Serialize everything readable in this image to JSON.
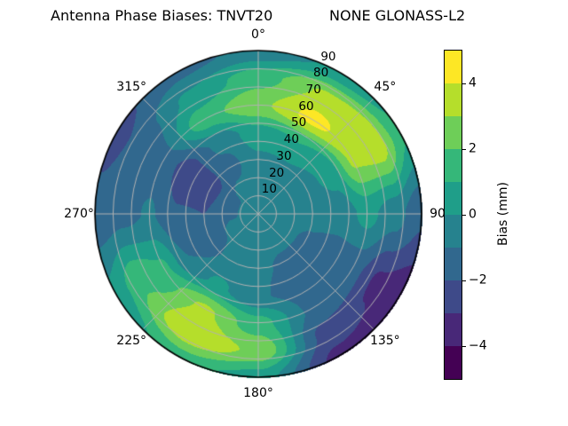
{
  "page": {
    "background": "#ffffff"
  },
  "title": {
    "left": "Antenna Phase Biases: TNVT20",
    "right": "NONE GLONASS-L2"
  },
  "chart_data": {
    "type": "polar_contour",
    "title": "Antenna Phase Biases: TNVT20        NONE GLONASS-L2",
    "orientation": {
      "zero_location": "N",
      "direction": "clockwise"
    },
    "angular_tick_labels": [
      "0°",
      "45°",
      "90",
      "135°",
      "180°",
      "225°",
      "270°",
      "315°"
    ],
    "angular_tick_degrees": [
      0,
      45,
      90,
      135,
      180,
      225,
      270,
      315
    ],
    "radial_tick_labels": [
      "10",
      "20",
      "30",
      "40",
      "50",
      "60",
      "70",
      "80",
      "90"
    ],
    "radial_tick_values": [
      10,
      20,
      30,
      40,
      50,
      60,
      70,
      80,
      90
    ],
    "radial_axis": {
      "min": 0,
      "max": 90,
      "label_azimuth_deg": 24
    },
    "grid": {
      "on": true,
      "color": "#b2b2b2",
      "radial_step": 10,
      "angular_step_deg": 45
    },
    "outline_color": "#000000",
    "colorbar": {
      "label": "Bias (mm)",
      "tick_labels": [
        "4",
        "2",
        "0",
        "−2",
        "−4"
      ],
      "tick_values": [
        4,
        2,
        0,
        -2,
        -4
      ],
      "vmin": -5,
      "vmax": 5,
      "band_colors_low_to_high": [
        "#440154",
        "#482878",
        "#3e4a89",
        "#31688e",
        "#26828e",
        "#1f9e89",
        "#35b779",
        "#6ece58",
        "#b5de2b",
        "#fde725"
      ]
    },
    "field": {
      "units": "mm",
      "azimuth_deg": [
        0,
        30,
        60,
        90,
        120,
        150,
        180,
        210,
        240,
        270,
        300,
        330
      ],
      "zenith_deg": [
        0,
        15,
        30,
        45,
        60,
        75,
        90
      ],
      "bias_mm": [
        [
          -0.4,
          -0.4,
          -0.4,
          -0.4,
          -0.4,
          -0.4,
          -0.4,
          -0.4,
          -0.4,
          -0.4,
          -0.4,
          -0.4
        ],
        [
          -0.3,
          -0.3,
          -0.4,
          -0.6,
          -0.8,
          -0.8,
          -0.7,
          -0.6,
          -0.8,
          -1.1,
          -1.1,
          -0.7
        ],
        [
          -0.2,
          -0.1,
          -0.4,
          -0.8,
          -1.1,
          -1.1,
          -0.9,
          -0.7,
          -1.4,
          -2.0,
          -2.4,
          -1.3
        ],
        [
          0.6,
          1.0,
          0.4,
          -0.6,
          -1.4,
          -1.4,
          -0.9,
          0.2,
          -1.0,
          -1.9,
          -2.6,
          -0.8
        ],
        [
          2.8,
          4.3,
          3.2,
          0.3,
          -1.6,
          -1.2,
          1.4,
          3.2,
          1.2,
          -0.9,
          -1.4,
          1.6
        ],
        [
          1.6,
          3.2,
          3.6,
          -0.6,
          -3.2,
          -2.4,
          2.8,
          3.9,
          1.8,
          -1.3,
          -1.7,
          0.2
        ],
        [
          -0.7,
          0.2,
          1.2,
          -1.8,
          -3.6,
          -3.3,
          0.5,
          1.5,
          0.3,
          -1.7,
          -2.3,
          -1.3
        ]
      ]
    }
  }
}
